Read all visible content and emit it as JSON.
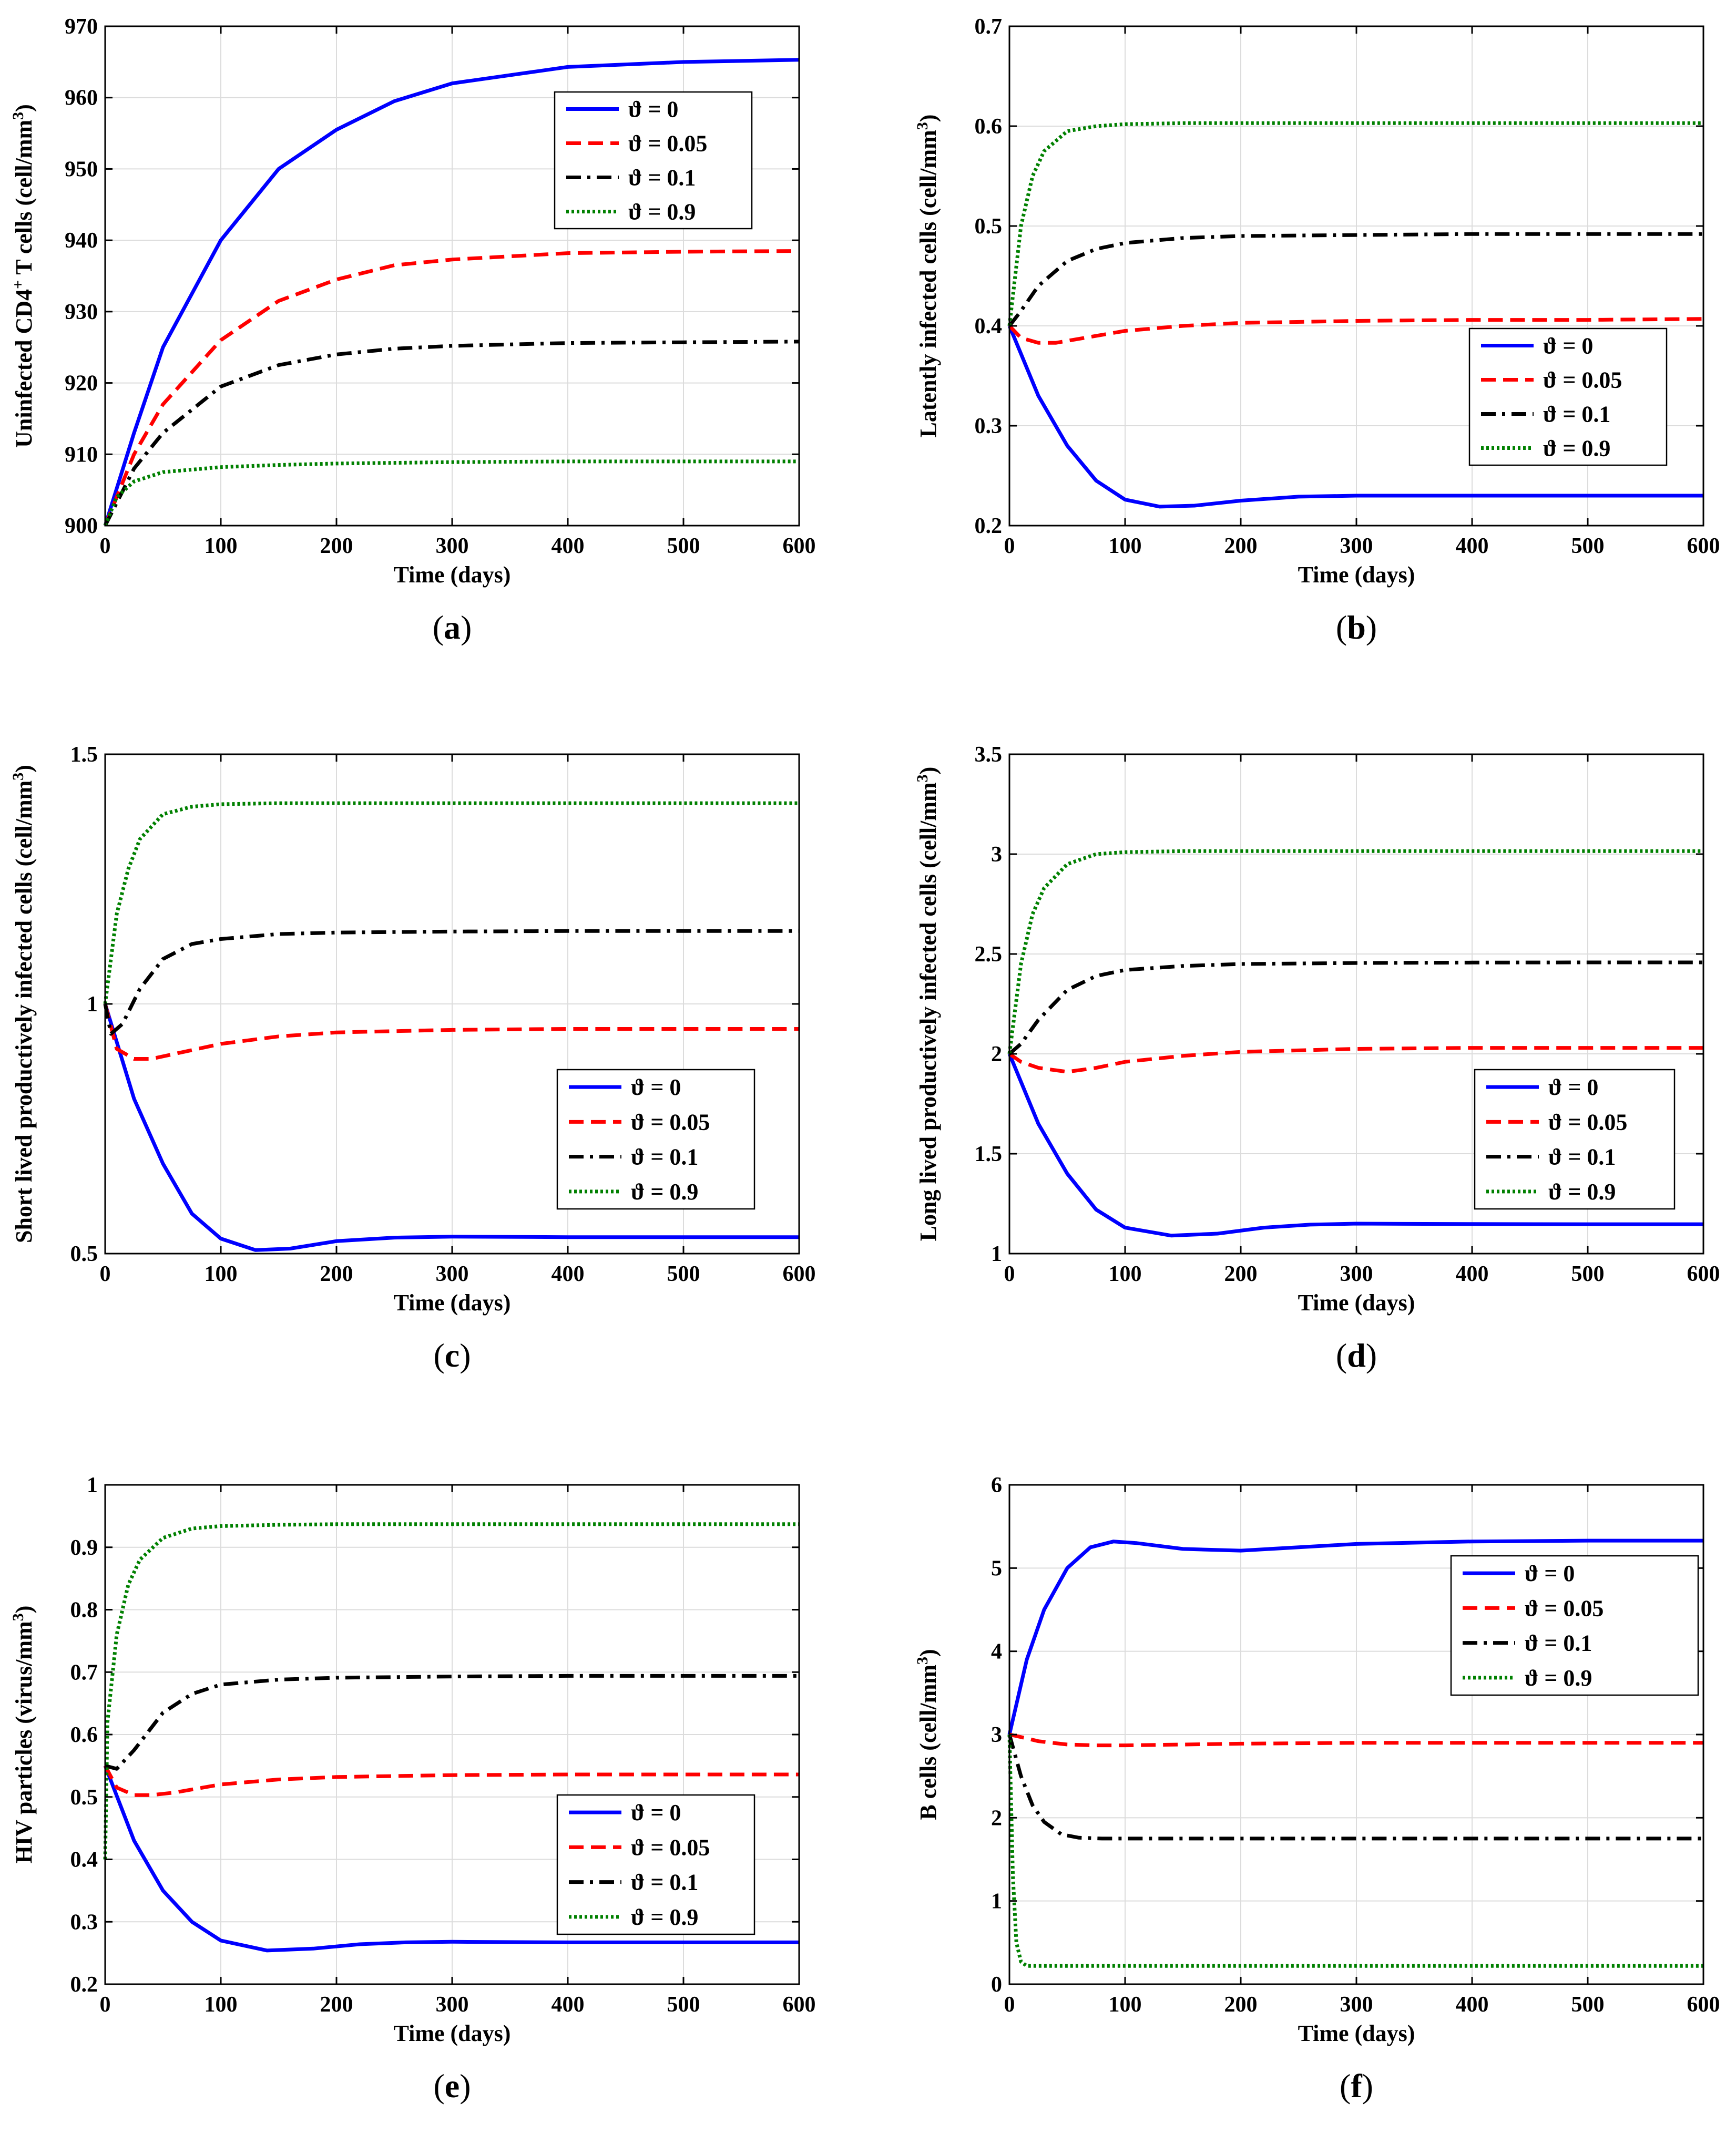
{
  "chart_data": [
    {
      "panel": "a",
      "caption_letter": "a",
      "type": "line",
      "xlabel": "Time (days)",
      "ylabel_parts": [
        "Uninfected CD4",
        "+",
        " T cells (cell/mm",
        "3",
        ")"
      ],
      "xlim": [
        0,
        600
      ],
      "ylim": [
        900,
        970
      ],
      "xticks": [
        0,
        100,
        200,
        300,
        400,
        500,
        600
      ],
      "yticks": [
        900,
        910,
        920,
        930,
        940,
        950,
        960,
        970
      ],
      "grid": true,
      "legend": "top-right",
      "series": [
        {
          "name": "ϑ = 0",
          "color": "#0000ff",
          "dash": "solid",
          "x": [
            0,
            25,
            50,
            100,
            150,
            200,
            250,
            300,
            400,
            500,
            600
          ],
          "y": [
            900,
            913,
            925,
            940,
            950,
            955.5,
            959.5,
            962,
            964.3,
            965,
            965.3
          ]
        },
        {
          "name": "ϑ = 0.05",
          "color": "#ff0000",
          "dash": "dashed",
          "x": [
            0,
            25,
            50,
            100,
            150,
            200,
            250,
            300,
            400,
            500,
            600
          ],
          "y": [
            900,
            910,
            917,
            926,
            931.5,
            934.5,
            936.5,
            937.3,
            938.2,
            938.4,
            938.5
          ]
        },
        {
          "name": "ϑ = 0.1",
          "color": "#000000",
          "dash": "dashdot",
          "x": [
            0,
            25,
            50,
            100,
            150,
            200,
            250,
            300,
            400,
            500,
            600
          ],
          "y": [
            900,
            908,
            913,
            919.5,
            922.5,
            924,
            924.8,
            925.2,
            925.6,
            925.7,
            925.8
          ]
        },
        {
          "name": "ϑ = 0.9",
          "color": "#008000",
          "dash": "dotted",
          "x": [
            0,
            10,
            25,
            50,
            100,
            150,
            200,
            300,
            400,
            500,
            600
          ],
          "y": [
            900,
            904,
            906.2,
            907.5,
            908.2,
            908.5,
            908.7,
            908.9,
            909,
            909,
            909
          ]
        }
      ]
    },
    {
      "panel": "b",
      "caption_letter": "b",
      "type": "line",
      "xlabel": "Time (days)",
      "ylabel_parts": [
        "Latently infected cells (cell/mm",
        "3",
        ")"
      ],
      "xlim": [
        0,
        600
      ],
      "ylim": [
        0.2,
        0.7
      ],
      "xticks": [
        0,
        100,
        200,
        300,
        400,
        500,
        600
      ],
      "yticks": [
        0.2,
        0.3,
        0.4,
        0.5,
        0.6,
        0.7
      ],
      "grid": true,
      "legend": "center-right",
      "series": [
        {
          "name": "ϑ = 0",
          "color": "#0000ff",
          "dash": "solid",
          "x": [
            0,
            25,
            50,
            75,
            100,
            130,
            160,
            200,
            250,
            300,
            400,
            500,
            600
          ],
          "y": [
            0.4,
            0.33,
            0.28,
            0.245,
            0.226,
            0.219,
            0.22,
            0.225,
            0.229,
            0.23,
            0.23,
            0.23,
            0.23
          ]
        },
        {
          "name": "ϑ = 0.05",
          "color": "#ff0000",
          "dash": "dashed",
          "x": [
            0,
            10,
            25,
            40,
            60,
            100,
            150,
            200,
            300,
            400,
            500,
            600
          ],
          "y": [
            0.4,
            0.388,
            0.383,
            0.383,
            0.387,
            0.395,
            0.4,
            0.403,
            0.405,
            0.406,
            0.406,
            0.407
          ]
        },
        {
          "name": "ϑ = 0.1",
          "color": "#000000",
          "dash": "dashdot",
          "x": [
            0,
            10,
            25,
            50,
            75,
            100,
            150,
            200,
            300,
            400,
            500,
            600
          ],
          "y": [
            0.4,
            0.415,
            0.44,
            0.465,
            0.477,
            0.483,
            0.488,
            0.49,
            0.491,
            0.492,
            0.492,
            0.492
          ]
        },
        {
          "name": "ϑ = 0.9",
          "color": "#008000",
          "dash": "dotted",
          "x": [
            0,
            10,
            20,
            30,
            50,
            75,
            100,
            150,
            200,
            300,
            400,
            600
          ],
          "y": [
            0.4,
            0.5,
            0.55,
            0.575,
            0.595,
            0.6,
            0.602,
            0.603,
            0.603,
            0.603,
            0.603,
            0.603
          ]
        }
      ]
    },
    {
      "panel": "c",
      "caption_letter": "c",
      "type": "line",
      "xlabel": "Time (days)",
      "ylabel_parts": [
        "Short lived productively infected cells (cell/mm",
        "3",
        ")"
      ],
      "xlim": [
        0,
        600
      ],
      "ylim": [
        0.5,
        1.5
      ],
      "xticks": [
        0,
        100,
        200,
        300,
        400,
        500,
        600
      ],
      "yticks": [
        0.5,
        1,
        1.5
      ],
      "grid": true,
      "legend": "center-right",
      "series": [
        {
          "name": "ϑ = 0",
          "color": "#0000ff",
          "dash": "solid",
          "x": [
            0,
            25,
            50,
            75,
            100,
            130,
            160,
            200,
            250,
            300,
            400,
            500,
            600
          ],
          "y": [
            1.0,
            0.81,
            0.68,
            0.58,
            0.53,
            0.507,
            0.51,
            0.525,
            0.532,
            0.534,
            0.533,
            0.533,
            0.533
          ]
        },
        {
          "name": "ϑ = 0.05",
          "color": "#ff0000",
          "dash": "dashed",
          "x": [
            0,
            10,
            25,
            40,
            60,
            100,
            150,
            200,
            300,
            400,
            500,
            600
          ],
          "y": [
            1.0,
            0.91,
            0.89,
            0.89,
            0.9,
            0.92,
            0.935,
            0.943,
            0.948,
            0.95,
            0.95,
            0.95
          ]
        },
        {
          "name": "ϑ = 0.1",
          "color": "#000000",
          "dash": "dashdot",
          "x": [
            0,
            5,
            15,
            30,
            50,
            75,
            100,
            150,
            200,
            300,
            400,
            500,
            600
          ],
          "y": [
            1.0,
            0.94,
            0.96,
            1.03,
            1.09,
            1.12,
            1.13,
            1.14,
            1.143,
            1.145,
            1.146,
            1.146,
            1.146
          ]
        },
        {
          "name": "ϑ = 0.9",
          "color": "#008000",
          "dash": "dotted",
          "x": [
            0,
            10,
            20,
            30,
            50,
            75,
            100,
            150,
            200,
            300,
            400,
            600
          ],
          "y": [
            1.0,
            1.18,
            1.27,
            1.33,
            1.38,
            1.395,
            1.4,
            1.402,
            1.402,
            1.402,
            1.402,
            1.402
          ]
        }
      ]
    },
    {
      "panel": "d",
      "caption_letter": "d",
      "type": "line",
      "xlabel": "Time (days)",
      "ylabel_parts": [
        "Long lived productively infected cells (cell/mm",
        "3",
        ")"
      ],
      "xlim": [
        0,
        600
      ],
      "ylim": [
        1,
        3.5
      ],
      "xticks": [
        0,
        100,
        200,
        300,
        400,
        500,
        600
      ],
      "yticks": [
        1,
        1.5,
        2,
        2.5,
        3,
        3.5
      ],
      "grid": true,
      "legend": "bottom-right",
      "series": [
        {
          "name": "ϑ = 0",
          "color": "#0000ff",
          "dash": "solid",
          "x": [
            0,
            25,
            50,
            75,
            100,
            140,
            180,
            220,
            260,
            300,
            400,
            500,
            600
          ],
          "y": [
            2.0,
            1.65,
            1.4,
            1.22,
            1.13,
            1.09,
            1.1,
            1.13,
            1.145,
            1.15,
            1.148,
            1.147,
            1.147
          ]
        },
        {
          "name": "ϑ = 0.05",
          "color": "#ff0000",
          "dash": "dashed",
          "x": [
            0,
            10,
            25,
            50,
            75,
            100,
            150,
            200,
            300,
            400,
            500,
            600
          ],
          "y": [
            2.0,
            1.96,
            1.93,
            1.91,
            1.93,
            1.96,
            1.99,
            2.01,
            2.025,
            2.03,
            2.03,
            2.03
          ]
        },
        {
          "name": "ϑ = 0.1",
          "color": "#000000",
          "dash": "dashdot",
          "x": [
            0,
            10,
            25,
            50,
            75,
            100,
            150,
            200,
            300,
            400,
            500,
            600
          ],
          "y": [
            2.0,
            2.05,
            2.17,
            2.32,
            2.39,
            2.42,
            2.44,
            2.45,
            2.455,
            2.457,
            2.458,
            2.458
          ]
        },
        {
          "name": "ϑ = 0.9",
          "color": "#008000",
          "dash": "dotted",
          "x": [
            0,
            10,
            20,
            30,
            50,
            75,
            100,
            150,
            200,
            300,
            400,
            600
          ],
          "y": [
            2.0,
            2.45,
            2.7,
            2.83,
            2.95,
            3.0,
            3.01,
            3.015,
            3.015,
            3.015,
            3.015,
            3.015
          ]
        }
      ]
    },
    {
      "panel": "e",
      "caption_letter": "e",
      "type": "line",
      "xlabel": "Time (days)",
      "ylabel_parts": [
        "HIV particles (virus/mm",
        "3",
        ")"
      ],
      "xlim": [
        0,
        600
      ],
      "ylim": [
        0.2,
        1
      ],
      "xticks": [
        0,
        100,
        200,
        300,
        400,
        500,
        600
      ],
      "yticks": [
        0.2,
        0.3,
        0.4,
        0.5,
        0.6,
        0.7,
        0.8,
        0.9,
        1
      ],
      "grid": true,
      "legend": "bottom-right",
      "series": [
        {
          "name": "ϑ = 0",
          "color": "#0000ff",
          "dash": "solid",
          "x": [
            0,
            25,
            50,
            75,
            100,
            140,
            180,
            220,
            260,
            300,
            400,
            500,
            600
          ],
          "y": [
            0.55,
            0.43,
            0.35,
            0.3,
            0.27,
            0.254,
            0.257,
            0.264,
            0.267,
            0.268,
            0.267,
            0.267,
            0.267
          ]
        },
        {
          "name": "ϑ = 0.05",
          "color": "#ff0000",
          "dash": "dashed",
          "x": [
            0,
            10,
            25,
            40,
            60,
            100,
            150,
            200,
            300,
            400,
            500,
            600
          ],
          "y": [
            0.55,
            0.515,
            0.503,
            0.503,
            0.507,
            0.52,
            0.528,
            0.532,
            0.535,
            0.536,
            0.536,
            0.536
          ]
        },
        {
          "name": "ϑ = 0.1",
          "color": "#000000",
          "dash": "dashdot",
          "x": [
            0,
            10,
            25,
            50,
            75,
            100,
            150,
            200,
            300,
            400,
            500,
            600
          ],
          "y": [
            0.55,
            0.545,
            0.575,
            0.635,
            0.665,
            0.68,
            0.688,
            0.691,
            0.693,
            0.694,
            0.694,
            0.694
          ]
        },
        {
          "name": "ϑ = 0.9",
          "color": "#008000",
          "dash": "dotted",
          "x": [
            0,
            2,
            10,
            20,
            30,
            50,
            75,
            100,
            150,
            200,
            300,
            400,
            600
          ],
          "y": [
            0.4,
            0.62,
            0.76,
            0.84,
            0.88,
            0.915,
            0.93,
            0.934,
            0.936,
            0.937,
            0.937,
            0.937,
            0.937
          ]
        }
      ]
    },
    {
      "panel": "f",
      "caption_letter": "f",
      "type": "line",
      "xlabel": "Time (days)",
      "ylabel_parts": [
        "B cells (cell/mm",
        "3",
        ")"
      ],
      "xlim": [
        0,
        600
      ],
      "ylim": [
        0,
        6
      ],
      "xticks": [
        0,
        100,
        200,
        300,
        400,
        500,
        600
      ],
      "yticks": [
        0,
        1,
        2,
        3,
        4,
        5,
        6
      ],
      "grid": true,
      "legend": "top-right",
      "series": [
        {
          "name": "ϑ = 0",
          "color": "#0000ff",
          "dash": "solid",
          "x": [
            0,
            15,
            30,
            50,
            70,
            90,
            110,
            150,
            200,
            250,
            300,
            400,
            500,
            600
          ],
          "y": [
            3.0,
            3.9,
            4.5,
            5.0,
            5.25,
            5.32,
            5.3,
            5.23,
            5.21,
            5.25,
            5.29,
            5.32,
            5.33,
            5.33
          ]
        },
        {
          "name": "ϑ = 0.05",
          "color": "#ff0000",
          "dash": "dashed",
          "x": [
            0,
            10,
            25,
            50,
            75,
            100,
            150,
            200,
            300,
            400,
            500,
            600
          ],
          "y": [
            3.0,
            2.97,
            2.92,
            2.88,
            2.87,
            2.87,
            2.88,
            2.89,
            2.9,
            2.9,
            2.9,
            2.9
          ]
        },
        {
          "name": "ϑ = 0.1",
          "color": "#000000",
          "dash": "dashdot",
          "x": [
            0,
            10,
            20,
            30,
            45,
            60,
            80,
            100,
            150,
            200,
            300,
            400,
            500,
            600
          ],
          "y": [
            3.0,
            2.5,
            2.15,
            1.95,
            1.8,
            1.76,
            1.75,
            1.75,
            1.75,
            1.75,
            1.75,
            1.75,
            1.75,
            1.75
          ]
        },
        {
          "name": "ϑ = 0.9",
          "color": "#008000",
          "dash": "dotted",
          "x": [
            0,
            3,
            6,
            10,
            15,
            30,
            100,
            200,
            300,
            400,
            500,
            600
          ],
          "y": [
            3.0,
            1.3,
            0.5,
            0.27,
            0.22,
            0.22,
            0.22,
            0.22,
            0.22,
            0.22,
            0.22,
            0.22
          ]
        }
      ]
    }
  ]
}
